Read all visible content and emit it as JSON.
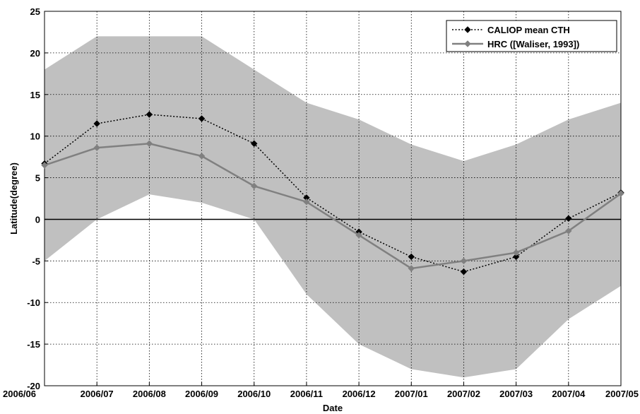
{
  "chart_data": {
    "type": "line",
    "title": "",
    "xlabel": "Date",
    "ylabel": "Latitude(degree)",
    "categories": [
      "2006/06",
      "2006/07",
      "2006/08",
      "2006/09",
      "2006/10",
      "2006/11",
      "2006/12",
      "2007/01",
      "2007/02",
      "2007/03",
      "2007/04",
      "2007/05"
    ],
    "ylim": [
      -20,
      25
    ],
    "yticks": [
      -20,
      -15,
      -10,
      -5,
      0,
      5,
      10,
      15,
      20,
      25
    ],
    "grid": true,
    "legend_position": "top-right",
    "band": {
      "upper": [
        18,
        22,
        22,
        22,
        18,
        14,
        12,
        9,
        7,
        9,
        12,
        14
      ],
      "lower": [
        -5,
        0,
        3,
        2,
        0,
        -9,
        -15,
        -18,
        -19,
        -18,
        -12,
        -8
      ],
      "color": "#c0c0c0"
    },
    "series": [
      {
        "name": "CALIOP mean CTH",
        "values": [
          6.7,
          11.5,
          12.6,
          12.1,
          9.1,
          2.6,
          -1.5,
          -4.5,
          -6.3,
          -4.5,
          0.1,
          3.2
        ],
        "color": "#000000",
        "style": "dotted"
      },
      {
        "name": "HRC ([Waliser, 1993])",
        "values": [
          6.5,
          8.6,
          9.1,
          7.6,
          4.0,
          2.1,
          -1.9,
          -5.9,
          -5.0,
          -4.0,
          -1.4,
          3.1
        ],
        "color": "#808080",
        "style": "solid"
      }
    ]
  }
}
